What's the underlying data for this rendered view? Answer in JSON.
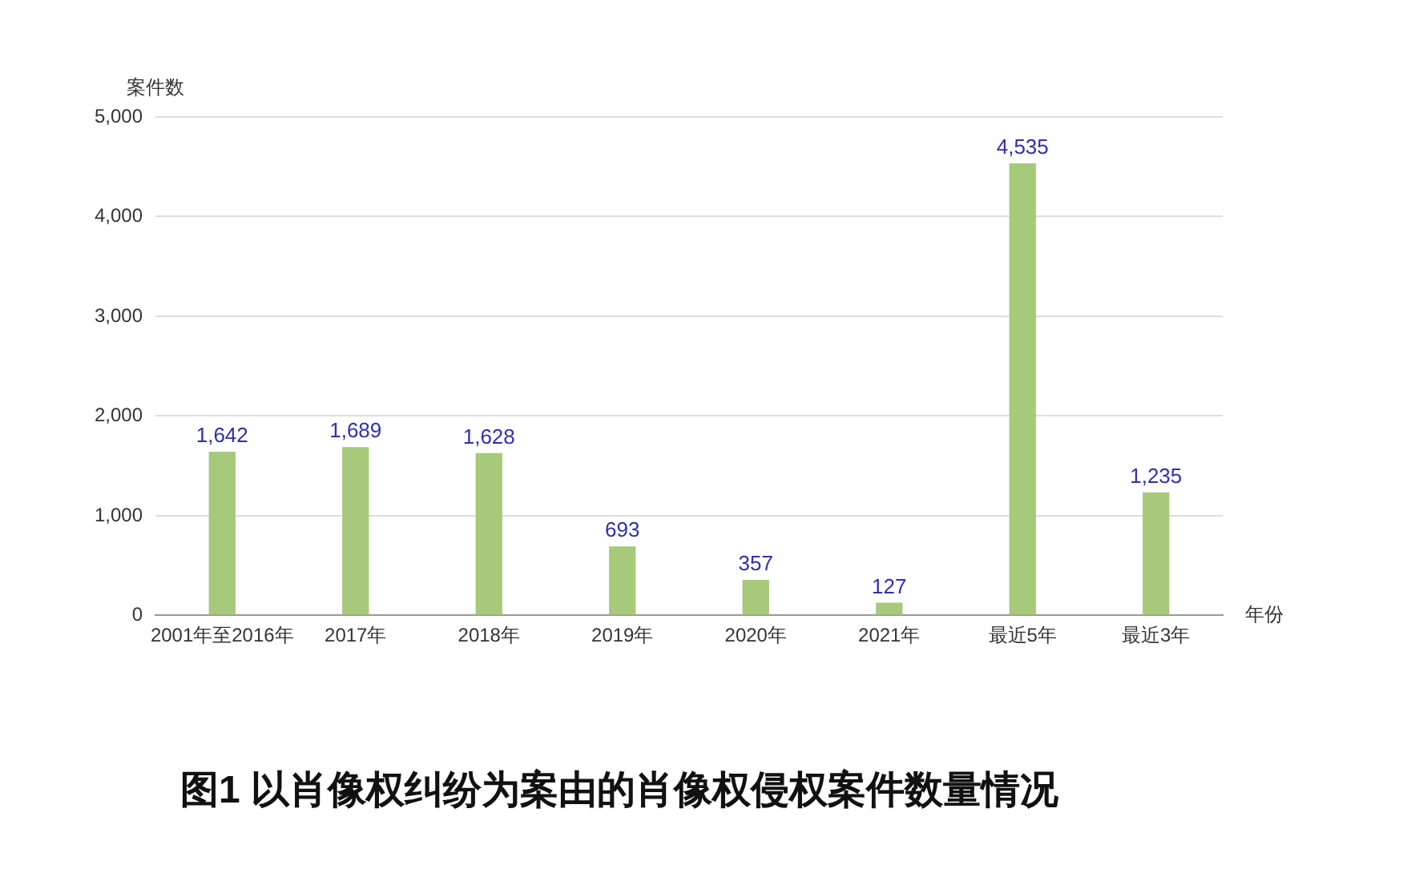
{
  "chart_data": {
    "type": "bar",
    "title": "图1 以肖像权纠纷为案由的肖像权侵权案件数量情况",
    "ylabel": "案件数",
    "xlabel": "年份",
    "categories": [
      "2001年至2016年",
      "2017年",
      "2018年",
      "2019年",
      "2020年",
      "2021年",
      "最近5年",
      "最近3年"
    ],
    "values": [
      1642,
      1689,
      1628,
      693,
      357,
      127,
      4535,
      1235
    ],
    "value_labels": [
      "1,642",
      "1,689",
      "1,628",
      "693",
      "357",
      "127",
      "4,535",
      "1,235"
    ],
    "color": "#a6c97a",
    "ylim": [
      0,
      5000
    ],
    "yticks": [
      0,
      {
        "value": 1000,
        "label": "1,000"
      },
      {
        "value": 2000,
        "label": "2,000"
      },
      {
        "value": 3000,
        "label": "3,000"
      },
      {
        "value": 4000,
        "label": "4,000"
      },
      {
        "value": 5000,
        "label": "5,000"
      }
    ],
    "grid": "y"
  }
}
